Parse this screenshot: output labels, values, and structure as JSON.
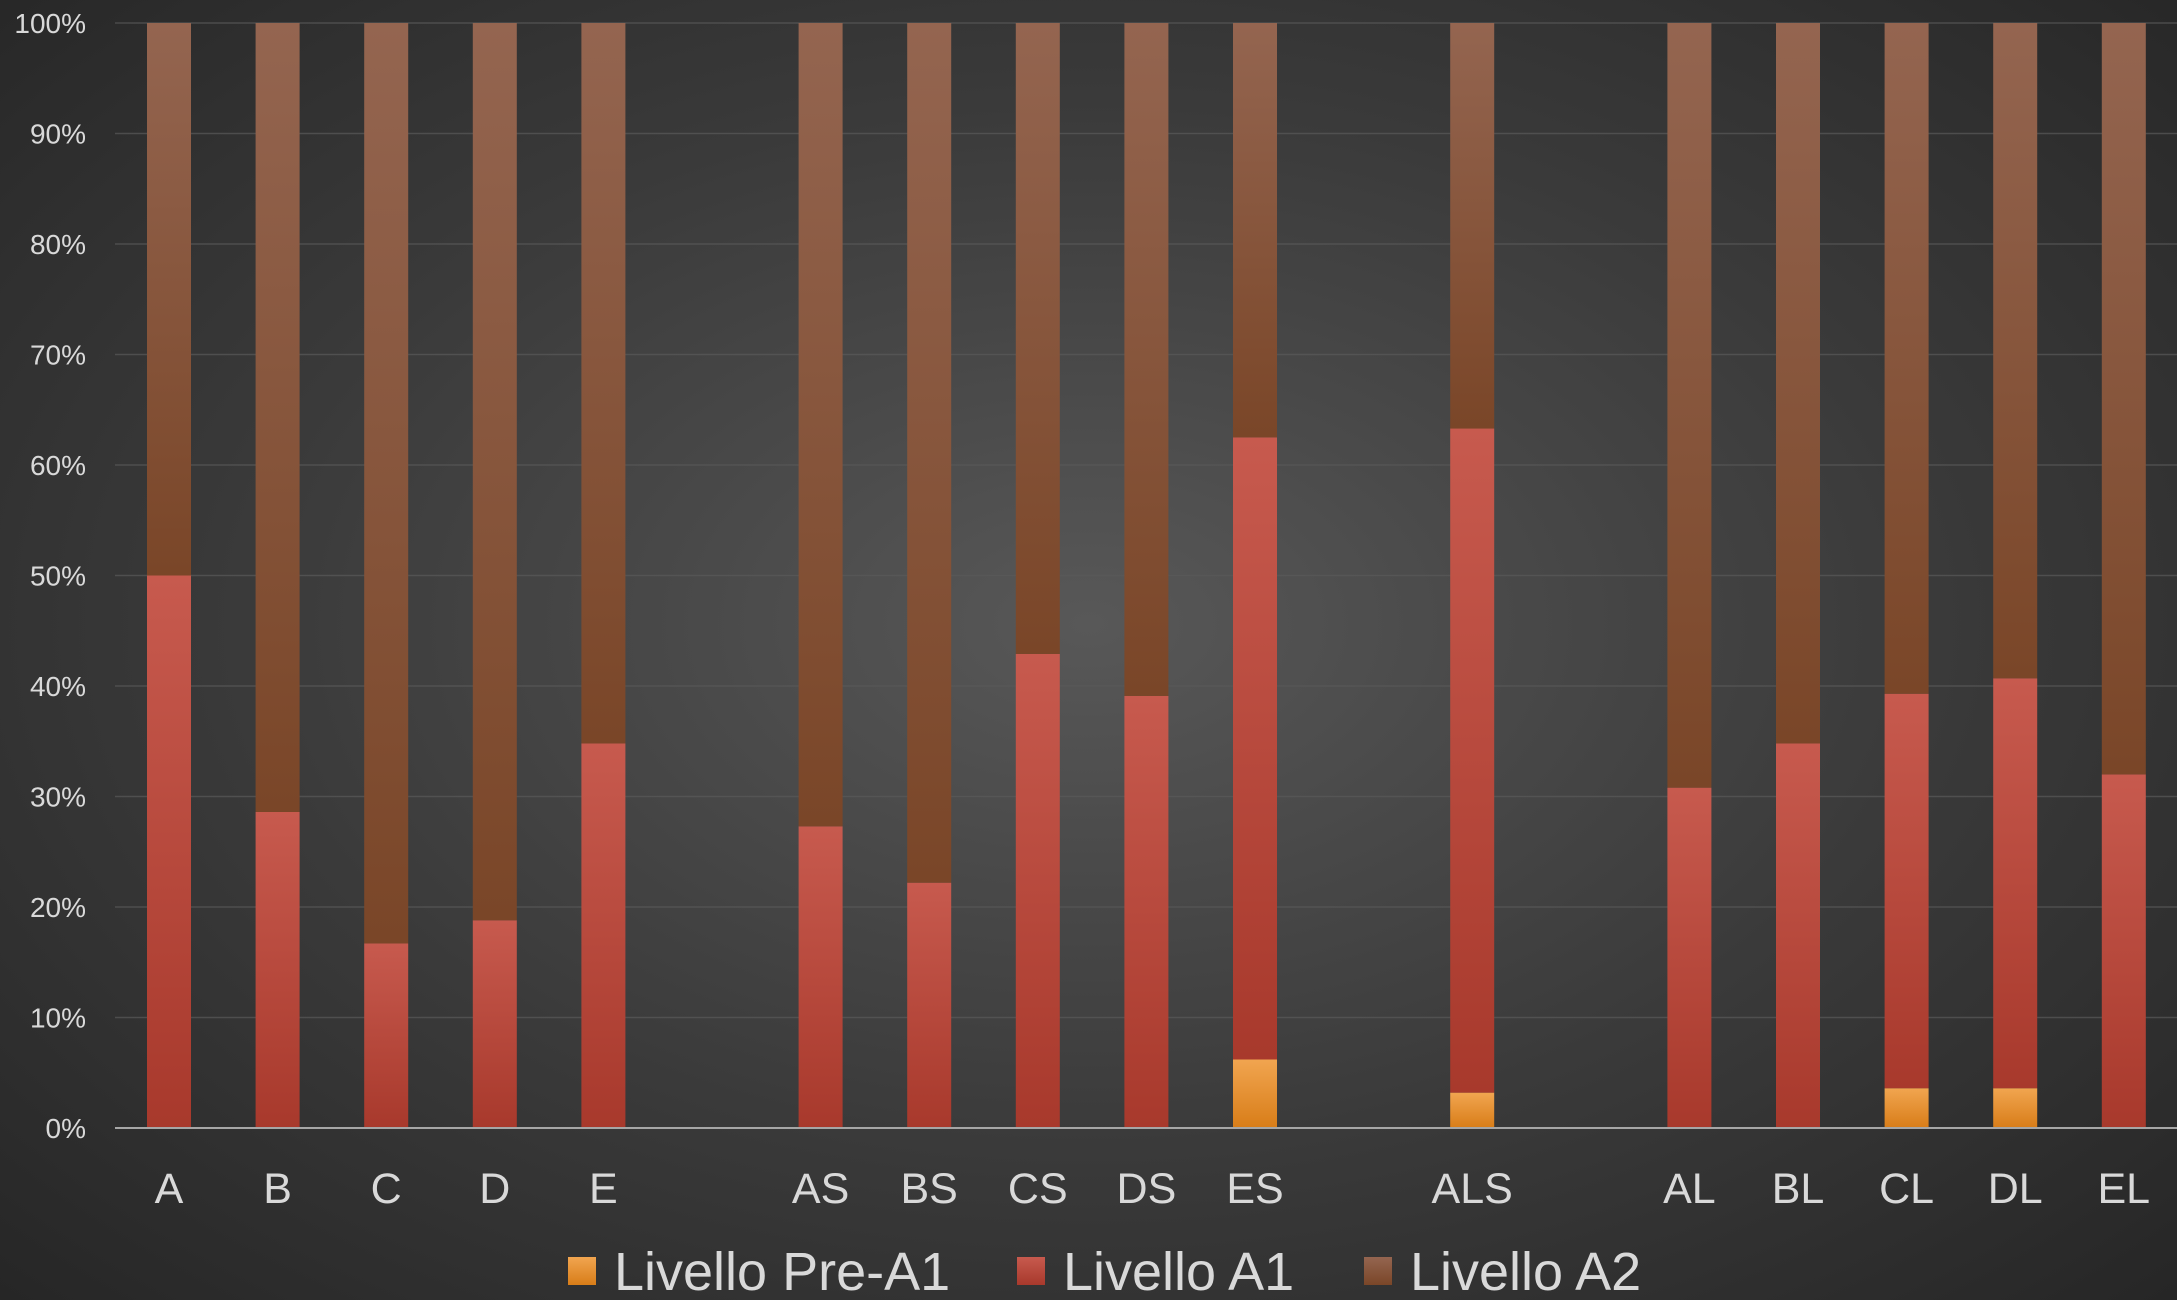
{
  "chart_data": {
    "type": "bar",
    "stacked": true,
    "percent": true,
    "categories": [
      "A",
      "B",
      "C",
      "D",
      "E",
      "",
      "AS",
      "BS",
      "CS",
      "DS",
      "ES",
      "",
      "ALS",
      "",
      "AL",
      "BL",
      "CL",
      "DL",
      "EL"
    ],
    "series": [
      {
        "name": "Livello Pre-A1",
        "color": "#e8902a",
        "values": [
          0,
          0,
          0,
          0,
          0,
          null,
          0,
          0,
          0,
          0,
          6.2,
          null,
          3.2,
          null,
          0,
          0,
          3.6,
          3.6,
          0
        ]
      },
      {
        "name": "Livello A1",
        "color": "#b84438",
        "values": [
          50,
          28.6,
          16.7,
          18.8,
          34.8,
          null,
          27.3,
          22.2,
          42.9,
          39.1,
          56.3,
          null,
          60.1,
          null,
          30.8,
          34.8,
          35.7,
          37.1,
          32.0
        ]
      },
      {
        "name": "Livello A2",
        "color": "#8a5438",
        "values": [
          50,
          71.4,
          83.3,
          81.2,
          65.2,
          null,
          72.7,
          77.8,
          57.1,
          60.9,
          37.5,
          null,
          36.7,
          null,
          69.2,
          65.2,
          60.7,
          59.3,
          68.0
        ]
      }
    ],
    "y_ticks": [
      "0%",
      "10%",
      "20%",
      "30%",
      "40%",
      "50%",
      "60%",
      "70%",
      "80%",
      "90%",
      "100%"
    ],
    "ylim": [
      0,
      100
    ],
    "grid": true,
    "legend_position": "bottom"
  }
}
